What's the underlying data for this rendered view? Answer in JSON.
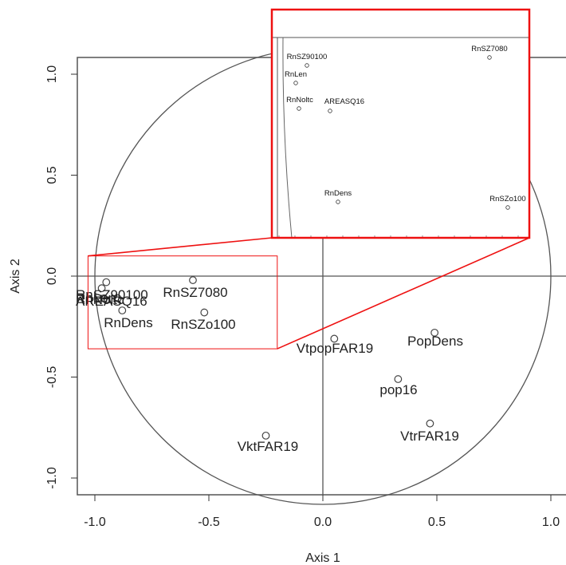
{
  "chart_data": {
    "type": "scatter",
    "xlabel": "Axis 1",
    "ylabel": "Axis 2",
    "xlim": [
      -1.05,
      1.07
    ],
    "ylim": [
      -1.08,
      1.08
    ],
    "x_ticks": [
      "-1.0",
      "-0.5",
      "0.0",
      "0.5",
      "1.0"
    ],
    "y_ticks": [
      "-1.0",
      "-0.5",
      "0.0",
      "0.5",
      "1.0"
    ],
    "unit_circle": true,
    "reference_lines": {
      "x": 0,
      "y": 0
    },
    "points": [
      {
        "label": "RnSZ90100",
        "x": -0.95,
        "y": -0.03,
        "overlap": true
      },
      {
        "label": "RnLen",
        "x": -0.97,
        "y": -0.06,
        "overlap": true
      },
      {
        "label": "RnNoltc",
        "x": -0.96,
        "y": -0.11,
        "overlap": true
      },
      {
        "label": "AREASQ16",
        "x": -0.9,
        "y": -0.11
      },
      {
        "label": "RnDens",
        "x": -0.88,
        "y": -0.17
      },
      {
        "label": "RnSZ7080",
        "x": -0.57,
        "y": -0.02
      },
      {
        "label": "RnSZo100",
        "x": -0.52,
        "y": -0.18
      },
      {
        "label": "VtpopFAR19",
        "x": 0.05,
        "y": -0.31
      },
      {
        "label": "PopDens",
        "x": 0.49,
        "y": -0.28
      },
      {
        "label": "pop16",
        "x": 0.33,
        "y": -0.51
      },
      {
        "label": "VtrFAR19",
        "x": 0.47,
        "y": -0.73
      },
      {
        "label": "VktFAR19",
        "x": -0.25,
        "y": -0.79
      }
    ],
    "display_labels": [
      {
        "text": "RnSZ90100",
        "for": "RnSZ90100"
      },
      {
        "text": "RnLen",
        "for": "RnLen"
      },
      {
        "text": "RnNoltc",
        "for": "RnNoltc"
      },
      {
        "text": "AREASQ16",
        "for": "AREASQ16"
      },
      {
        "text": "RnDens",
        "for": "RnDens"
      },
      {
        "text": "RnSZ7080",
        "for": "RnSZ7080"
      },
      {
        "text": "RnSZo100",
        "for": "RnSZo100"
      },
      {
        "text": "VtpopFAR19",
        "for": "VtpopFAR19"
      },
      {
        "text": "PopDens",
        "for": "PopDens"
      },
      {
        "text": "pop16",
        "for": "pop16"
      },
      {
        "text": "VtrFAR19",
        "for": "VtrFAR19"
      },
      {
        "text": "VktFAR19",
        "for": "VktFAR19"
      }
    ],
    "zoom_region": {
      "xlim": [
        -1.03,
        -0.2
      ],
      "ylim": [
        -0.36,
        0.1
      ]
    },
    "inset": {
      "labels": [
        {
          "text": "RnSZ90100",
          "for": "RnSZ90100",
          "x": -0.95,
          "y": -0.03
        },
        {
          "text": "RnLen",
          "for": "RnLen",
          "x": -0.97,
          "y": -0.06
        },
        {
          "text": "RnNoltc",
          "for": "RnNoltc",
          "x": -0.96,
          "y": -0.11
        },
        {
          "text": "AREASQ16",
          "for": "AREASQ16",
          "x": -0.9,
          "y": -0.11
        },
        {
          "text": "RnDens",
          "for": "RnDens",
          "x": -0.88,
          "y": -0.26
        },
        {
          "text": "RnSZ7080",
          "for": "RnSZ7080",
          "x": -0.57,
          "y": -0.02
        },
        {
          "text": "RnSZo100",
          "for": "RnSZo100",
          "x": -0.52,
          "y": -0.28
        }
      ]
    },
    "colors": {
      "points": "#444444",
      "frame": "#555555",
      "zoom": "#ee1111"
    }
  }
}
